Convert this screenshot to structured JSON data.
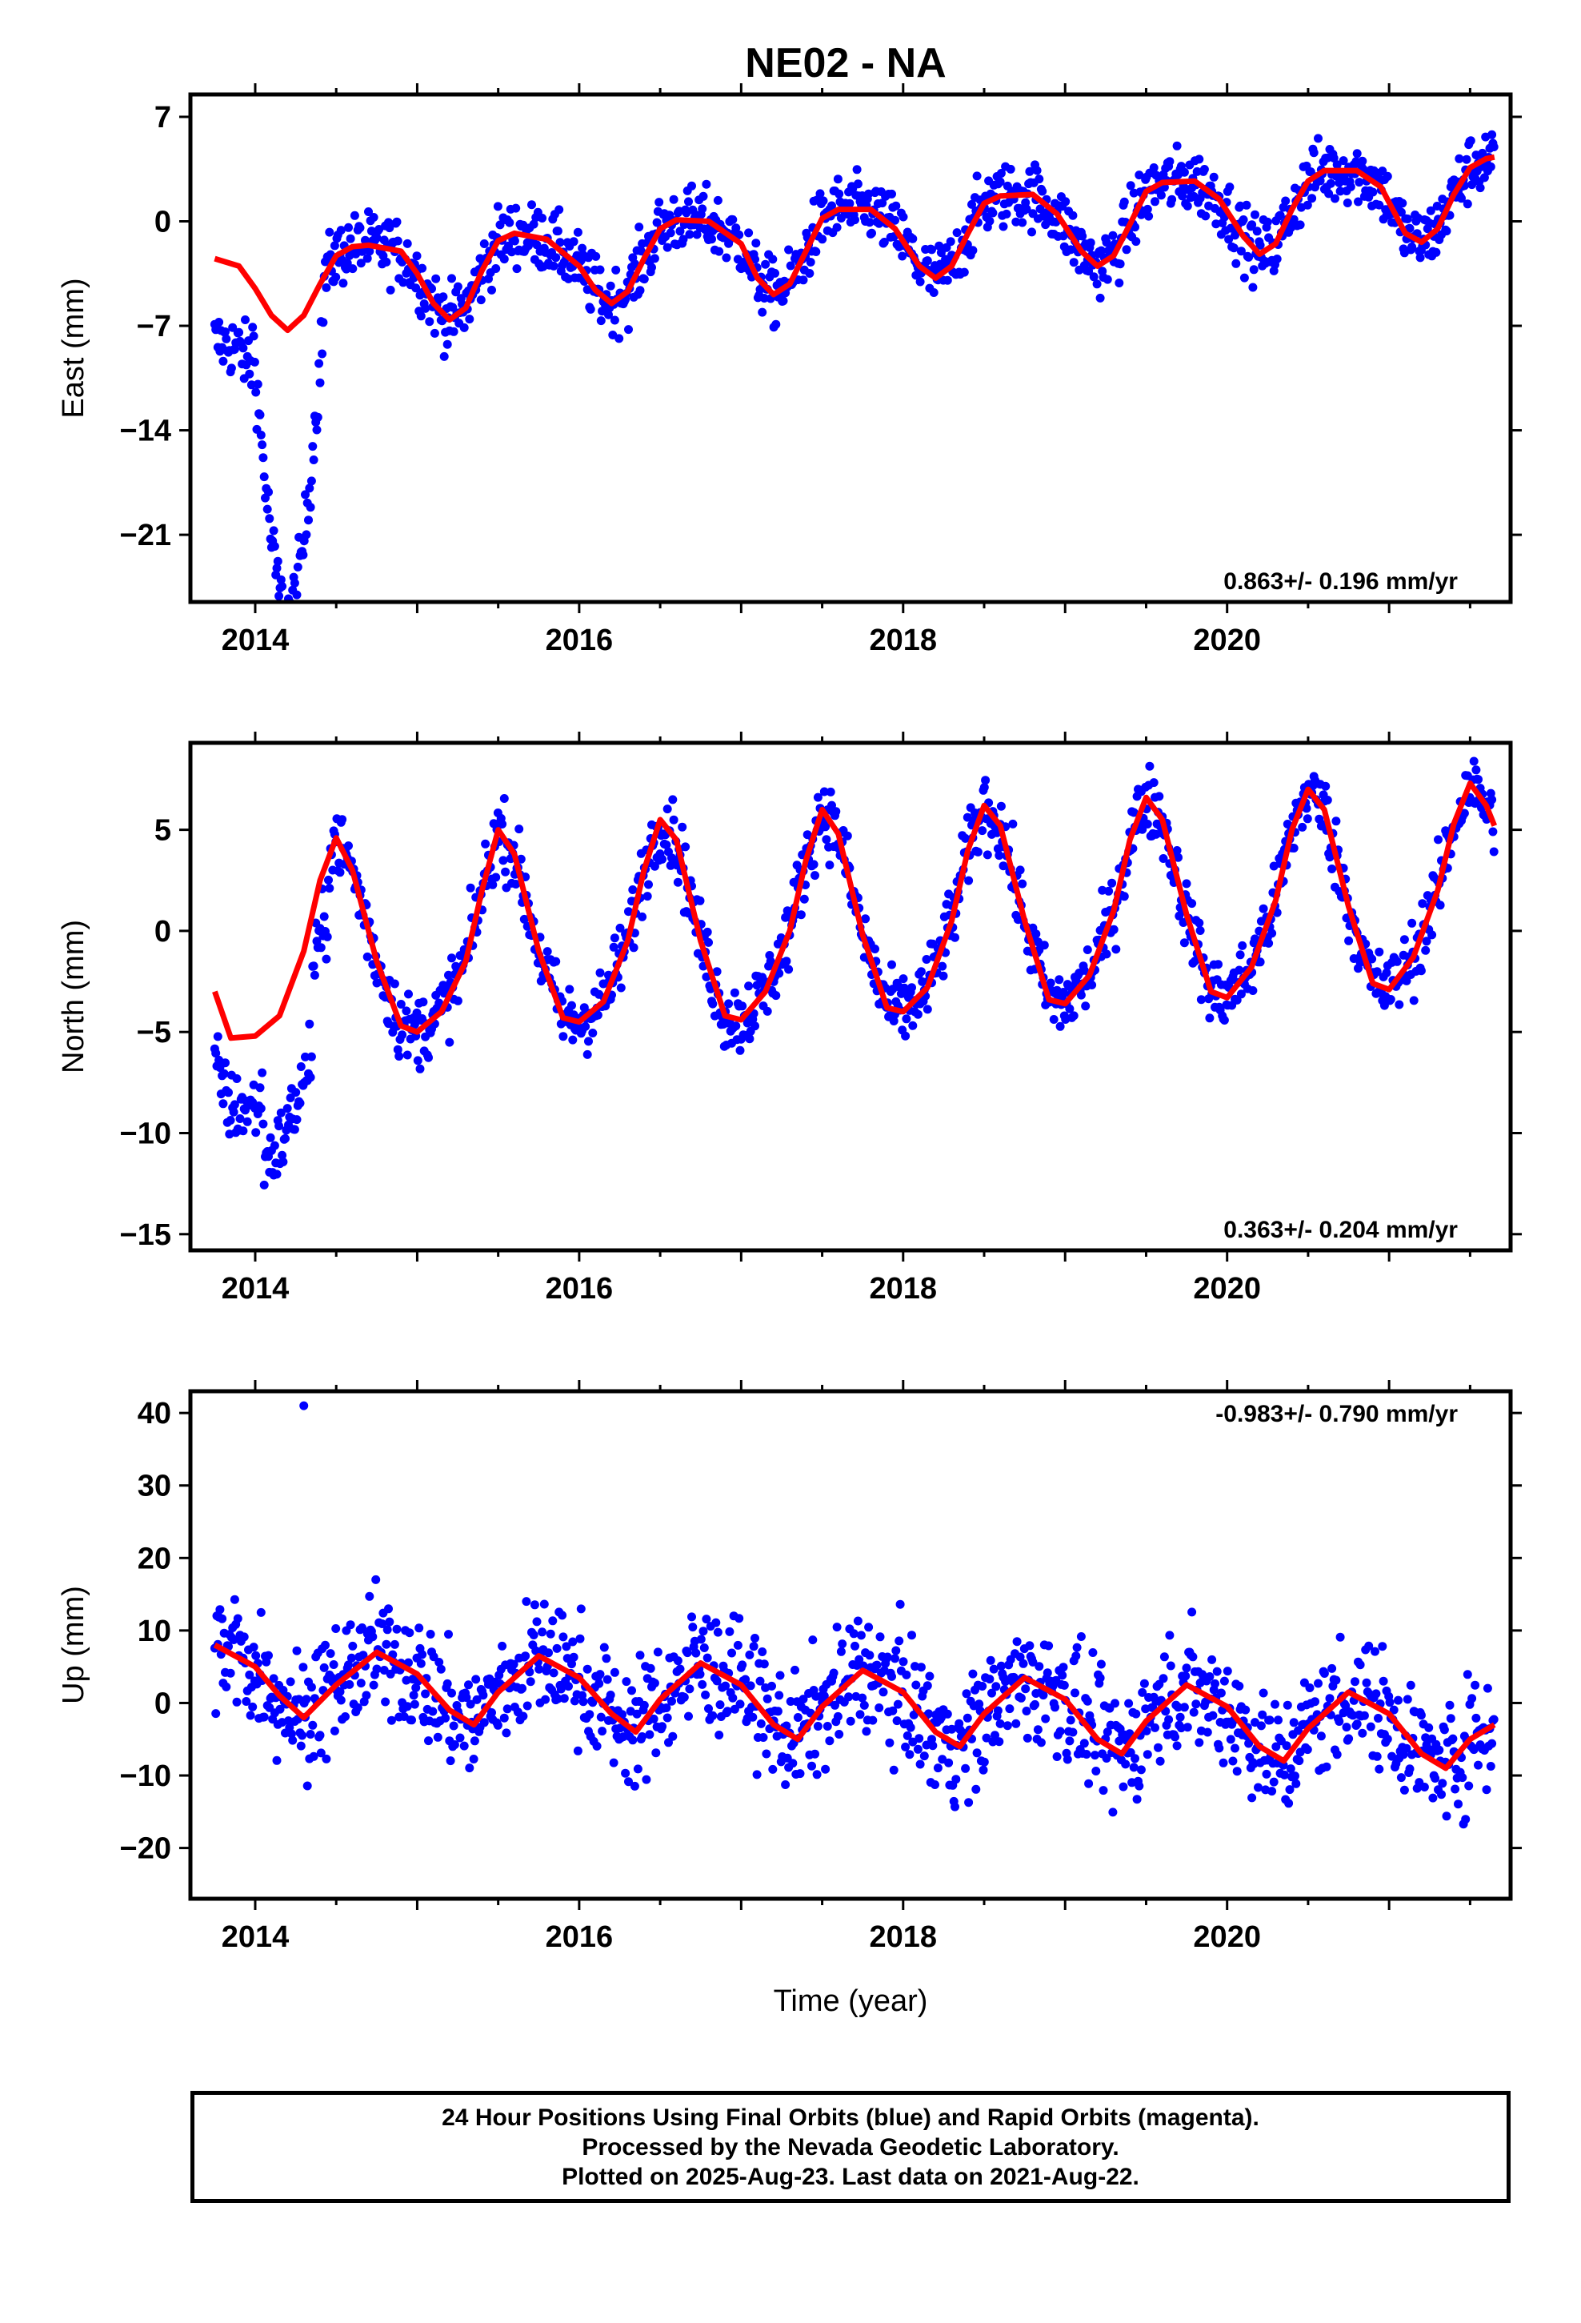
{
  "title": "NE02 - NA",
  "footer": {
    "line1": "24 Hour Positions Using Final Orbits (blue) and Rapid Orbits (magenta).",
    "line2": "Processed by the Nevada Geodetic Laboratory.",
    "line3": "Plotted on 2025-Aug-23. Last data on 2021-Aug-22."
  },
  "colors": {
    "points": "#0000ff",
    "fit": "#ff0000",
    "frame": "#000000"
  },
  "chart_data": [
    {
      "type": "scatter",
      "panel": "east",
      "title": "NE02 - NA",
      "xlabel": "",
      "ylabel": "East (mm)",
      "xlim": [
        2013.6,
        2021.75
      ],
      "ylim": [
        -25.5,
        8.5
      ],
      "xticks": [
        2014,
        2016,
        2018,
        2020
      ],
      "yticks": [
        7,
        0,
        -7,
        -14,
        -21
      ],
      "rate_label": "0.863+/- 0.196 mm/yr",
      "rate_position": "bottom-right",
      "fit_curve": {
        "name": "model fit",
        "x": [
          2013.75,
          2013.9,
          2014.0,
          2014.1,
          2014.2,
          2014.3,
          2014.4,
          2014.5,
          2014.6,
          2014.7,
          2014.9,
          2015.0,
          2015.1,
          2015.2,
          2015.3,
          2015.4,
          2015.5,
          2015.6,
          2015.8,
          2016.0,
          2016.1,
          2016.2,
          2016.3,
          2016.4,
          2016.5,
          2016.6,
          2016.8,
          2017.0,
          2017.1,
          2017.2,
          2017.3,
          2017.4,
          2017.5,
          2017.6,
          2017.8,
          2017.95,
          2018.1,
          2018.2,
          2018.3,
          2018.4,
          2018.5,
          2018.6,
          2018.8,
          2018.95,
          2019.1,
          2019.2,
          2019.3,
          2019.4,
          2019.5,
          2019.6,
          2019.8,
          2019.95,
          2020.1,
          2020.2,
          2020.3,
          2020.4,
          2020.5,
          2020.6,
          2020.8,
          2020.95,
          2021.1,
          2021.2,
          2021.3,
          2021.4,
          2021.5,
          2021.6,
          2021.65
        ],
        "y": [
          -2.5,
          -3.0,
          -4.5,
          -6.3,
          -7.3,
          -6.3,
          -4.2,
          -2.3,
          -1.7,
          -1.6,
          -2.0,
          -3.5,
          -5.5,
          -6.6,
          -5.8,
          -3.3,
          -1.3,
          -0.8,
          -1.2,
          -3.0,
          -4.6,
          -5.5,
          -4.7,
          -2.5,
          -0.5,
          0.1,
          0.0,
          -1.5,
          -3.8,
          -4.9,
          -4.2,
          -2.0,
          0.2,
          0.8,
          0.8,
          -0.5,
          -3.0,
          -3.8,
          -3.0,
          -0.8,
          1.2,
          1.7,
          1.8,
          0.5,
          -2.0,
          -3.0,
          -2.3,
          -0.2,
          2.0,
          2.6,
          2.7,
          1.5,
          -1.0,
          -2.2,
          -1.5,
          0.8,
          2.7,
          3.4,
          3.4,
          2.3,
          -0.8,
          -1.4,
          -0.5,
          1.8,
          3.6,
          4.2,
          4.3
        ]
      }
    },
    {
      "type": "scatter",
      "panel": "north",
      "xlabel": "",
      "ylabel": "North (mm)",
      "xlim": [
        2013.6,
        2021.75
      ],
      "ylim": [
        -15.8,
        9.3
      ],
      "xticks": [
        2014,
        2016,
        2018,
        2020
      ],
      "yticks": [
        5,
        0,
        -5,
        -10,
        -15
      ],
      "rate_label": "0.363+/- 0.204 mm/yr",
      "rate_position": "bottom-right",
      "fit_curve": {
        "name": "model fit",
        "x": [
          2013.75,
          2013.85,
          2014.0,
          2014.15,
          2014.3,
          2014.4,
          2014.5,
          2014.6,
          2014.75,
          2014.9,
          2015.0,
          2015.15,
          2015.3,
          2015.4,
          2015.5,
          2015.6,
          2015.75,
          2015.9,
          2016.0,
          2016.15,
          2016.3,
          2016.4,
          2016.5,
          2016.6,
          2016.75,
          2016.9,
          2017.0,
          2017.15,
          2017.3,
          2017.4,
          2017.5,
          2017.6,
          2017.75,
          2017.9,
          2018.0,
          2018.15,
          2018.3,
          2018.4,
          2018.5,
          2018.6,
          2018.75,
          2018.9,
          2019.0,
          2019.15,
          2019.3,
          2019.4,
          2019.5,
          2019.6,
          2019.75,
          2019.9,
          2020.0,
          2020.15,
          2020.3,
          2020.4,
          2020.5,
          2020.6,
          2020.75,
          2020.9,
          2021.0,
          2021.15,
          2021.3,
          2021.4,
          2021.5,
          2021.6,
          2021.65
        ],
        "y": [
          -3.0,
          -5.3,
          -5.2,
          -4.2,
          -1.0,
          2.5,
          4.6,
          3.0,
          -1.5,
          -4.7,
          -5.0,
          -4.0,
          -1.5,
          2.0,
          5.0,
          3.8,
          -1.0,
          -4.3,
          -4.5,
          -3.5,
          -0.5,
          3.0,
          5.5,
          4.5,
          -0.5,
          -4.2,
          -4.4,
          -3.0,
          0.0,
          3.5,
          6.0,
          4.8,
          -0.2,
          -3.8,
          -4.0,
          -2.8,
          0.5,
          4.0,
          6.2,
          5.2,
          0.5,
          -3.4,
          -3.6,
          -2.2,
          1.0,
          4.5,
          6.6,
          5.5,
          0.8,
          -3.0,
          -3.3,
          -1.8,
          1.5,
          5.0,
          7.0,
          6.0,
          1.2,
          -2.6,
          -2.9,
          -1.3,
          2.0,
          5.3,
          7.3,
          6.2,
          5.2
        ]
      }
    },
    {
      "type": "scatter",
      "panel": "up",
      "xlabel": "Time (year)",
      "ylabel": "Up (mm)",
      "xlim": [
        2013.6,
        2021.75
      ],
      "ylim": [
        -27,
        43
      ],
      "xticks": [
        2014,
        2016,
        2018,
        2020
      ],
      "yticks": [
        40,
        30,
        20,
        10,
        0,
        -10,
        -20
      ],
      "rate_label": "-0.983+/- 0.790 mm/yr",
      "rate_position": "top-right",
      "fit_curve": {
        "name": "model fit",
        "x": [
          2013.75,
          2014.0,
          2014.15,
          2014.3,
          2014.5,
          2014.75,
          2015.0,
          2015.2,
          2015.35,
          2015.5,
          2015.75,
          2016.0,
          2016.2,
          2016.35,
          2016.5,
          2016.75,
          2017.0,
          2017.2,
          2017.35,
          2017.5,
          2017.75,
          2018.0,
          2018.2,
          2018.35,
          2018.5,
          2018.75,
          2019.0,
          2019.2,
          2019.35,
          2019.5,
          2019.75,
          2020.0,
          2020.2,
          2020.35,
          2020.5,
          2020.75,
          2021.0,
          2021.2,
          2021.35,
          2021.5,
          2021.65
        ],
        "y": [
          8.0,
          5.0,
          1.0,
          -2.0,
          2.5,
          7.0,
          4.0,
          -1.0,
          -3.0,
          1.5,
          6.5,
          3.5,
          -1.5,
          -4.0,
          0.5,
          5.5,
          2.5,
          -3.0,
          -5.0,
          -0.5,
          4.5,
          1.5,
          -4.0,
          -6.0,
          -1.5,
          3.5,
          0.5,
          -5.0,
          -7.0,
          -2.5,
          2.5,
          -0.5,
          -6.0,
          -8.0,
          -3.5,
          1.5,
          -1.5,
          -7.0,
          -9.0,
          -5.0,
          -3.0
        ]
      }
    }
  ]
}
